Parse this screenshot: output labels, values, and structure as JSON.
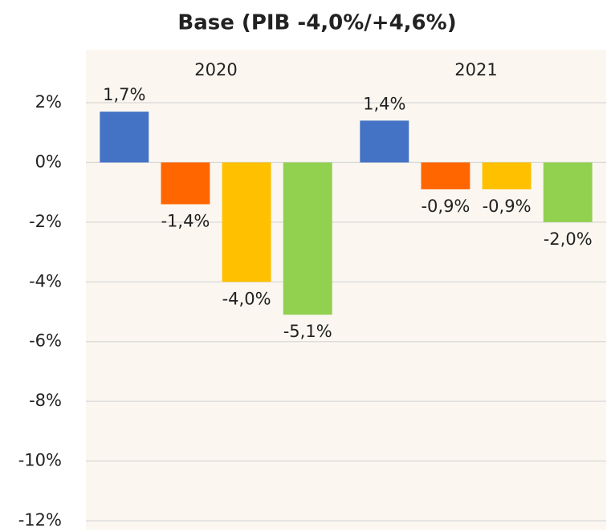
{
  "chart_data": {
    "type": "bar",
    "title": "Base (PIB -4,0%/+4,6%)",
    "categories": [
      "2020",
      "2021"
    ],
    "series": [
      {
        "color": "#4472c4",
        "values": [
          1.7,
          1.4
        ],
        "value_labels": [
          "1,7%",
          "1,4%"
        ]
      },
      {
        "color": "#ff6600",
        "values": [
          -1.4,
          -0.9
        ],
        "value_labels": [
          "-1,4%",
          "-0,9%"
        ]
      },
      {
        "color": "#ffc000",
        "values": [
          -4.0,
          -0.9
        ],
        "value_labels": [
          "-4,0%",
          "-0,9%"
        ]
      },
      {
        "color": "#92d050",
        "values": [
          -5.1,
          -2.0
        ],
        "value_labels": [
          "-5,1%",
          "-2,0%"
        ]
      }
    ],
    "ylim": [
      -12,
      2
    ],
    "yticks": [
      {
        "value": 2,
        "label": "2%"
      },
      {
        "value": 0,
        "label": "0%"
      },
      {
        "value": -2,
        "label": "-2%"
      },
      {
        "value": -4,
        "label": "-4%"
      },
      {
        "value": -6,
        "label": "-6%"
      },
      {
        "value": -8,
        "label": "-8%"
      },
      {
        "value": -10,
        "label": "-10%"
      },
      {
        "value": -12,
        "label": "-12%"
      }
    ],
    "grid": true
  }
}
